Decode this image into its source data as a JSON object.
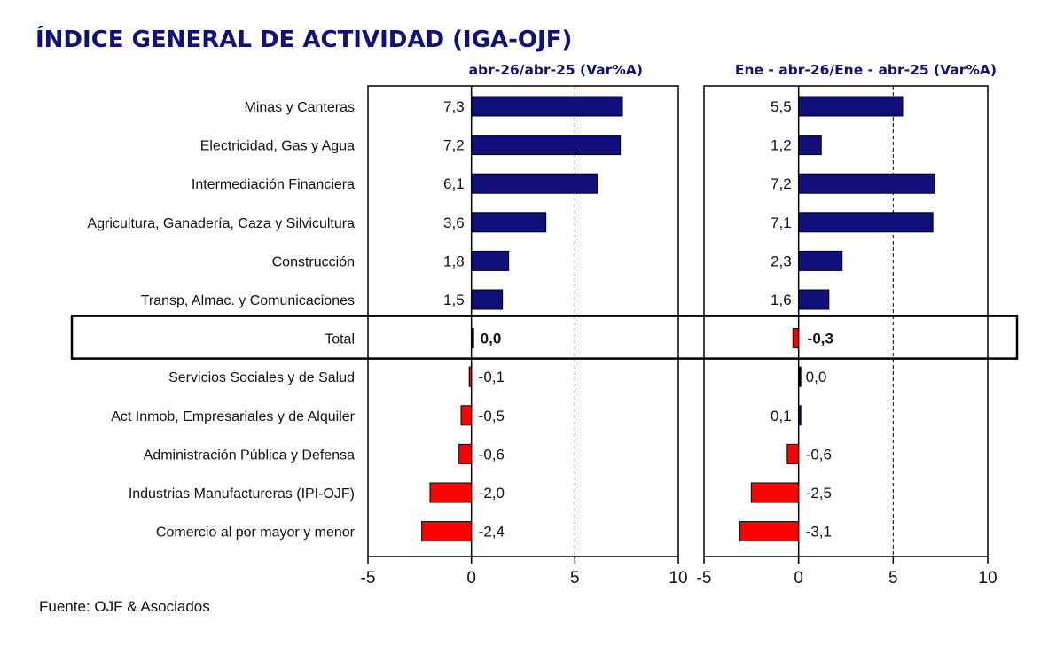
{
  "title": "ÍNDICE GENERAL DE ACTIVIDAD (IGA-OJF)",
  "source": "Fuente: OJF & Asociados",
  "chart_data": {
    "type": "bar",
    "orientation": "horizontal",
    "categories": [
      "Minas y Canteras",
      "Electricidad, Gas y Agua",
      "Intermediación Financiera",
      "Agricultura, Ganadería, Caza y Silvicultura",
      "Construcción",
      "Transp, Almac. y Comunicaciones",
      "Total",
      "Servicios Sociales y de Salud",
      "Act Inmob, Empresariales y de Alquiler",
      "Administración Pública y Defensa",
      "Industrias Manufactureras (IPI-OJF)",
      "Comercio al por mayor y menor"
    ],
    "highlight_category": "Total",
    "panels": [
      {
        "title": "abr-26/abr-25  (Var%A)",
        "values": [
          7.3,
          7.2,
          6.1,
          3.6,
          1.8,
          1.5,
          0.0,
          -0.1,
          -0.5,
          -0.6,
          -2.0,
          -2.4
        ],
        "labels": [
          "7,3",
          "7,2",
          "6,1",
          "3,6",
          "1,8",
          "1,5",
          "0,0",
          "-0,1",
          "-0,5",
          "-0,6",
          "-2,0",
          "-2,4"
        ],
        "xlim": [
          -5,
          10
        ],
        "ticks": [
          "-5",
          "0",
          "5",
          "10"
        ],
        "reference_line": 5
      },
      {
        "title": "Ene - abr-26/Ene - abr-25  (Var%A)",
        "values": [
          5.5,
          1.2,
          7.2,
          7.1,
          2.3,
          1.6,
          -0.3,
          0.0,
          0.1,
          -0.6,
          -2.5,
          -3.1
        ],
        "labels": [
          "5,5",
          "1,2",
          "7,2",
          "7,1",
          "2,3",
          "1,6",
          "-0,3",
          "0,0",
          "0,1",
          "-0,6",
          "-2,5",
          "-3,1"
        ],
        "xlim": [
          -5,
          10
        ],
        "ticks": [
          "-5",
          "0",
          "5",
          "10"
        ],
        "reference_line": 5
      }
    ],
    "colors": {
      "positive": "#10107a",
      "negative": "#ff0000"
    },
    "grid": false
  }
}
